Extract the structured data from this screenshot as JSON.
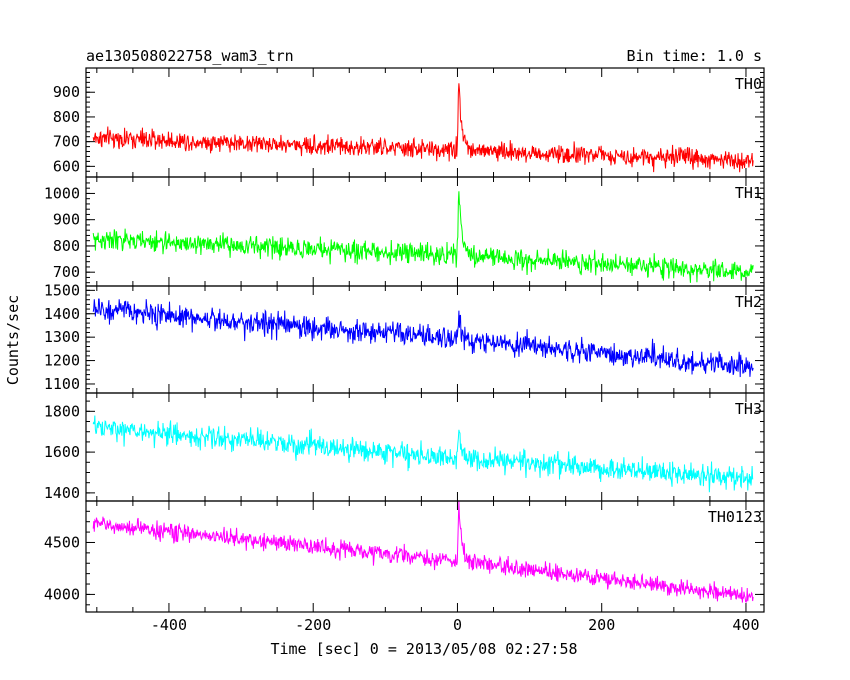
{
  "chart_data": {
    "type": "line",
    "title": "ae130508022758_wam3_trn",
    "subtitle": "Bin time: 1.0 s",
    "xlabel": "Time [sec] 0 = 2013/05/08 02:27:58",
    "ylabel": "Counts/sec",
    "xlim": [
      -515,
      425
    ],
    "xticks": [
      -400,
      -200,
      0,
      200,
      400
    ],
    "grid": false,
    "panels": [
      {
        "name": "TH0",
        "color": "#ff0000",
        "ylim": [
          565,
          990
        ],
        "yticks": [
          600,
          700,
          800,
          900
        ],
        "trend": [
          [
            -505,
            715
          ],
          [
            0,
            665
          ],
          [
            410,
            625
          ]
        ],
        "noise": 35,
        "peak": {
          "x": 2,
          "y": 975
        }
      },
      {
        "name": "TH1",
        "color": "#00ff00",
        "ylim": [
          655,
          1055
        ],
        "yticks": [
          700,
          800,
          900,
          1000
        ],
        "trend": [
          [
            -505,
            825
          ],
          [
            0,
            765
          ],
          [
            410,
            700
          ]
        ],
        "noise": 35,
        "peak": {
          "x": 2,
          "y": 1010
        }
      },
      {
        "name": "TH2",
        "color": "#0000ff",
        "ylim": [
          1070,
          1510
        ],
        "yticks": [
          1100,
          1200,
          1300,
          1400,
          1500
        ],
        "trend": [
          [
            -505,
            1420
          ],
          [
            0,
            1290
          ],
          [
            410,
            1170
          ]
        ],
        "noise": 45,
        "peak": {
          "x": 2,
          "y": 1400
        }
      },
      {
        "name": "TH3",
        "color": "#00ffff",
        "ylim": [
          1370,
          1880
        ],
        "yticks": [
          1400,
          1600,
          1800
        ],
        "trend": [
          [
            -505,
            1720
          ],
          [
            0,
            1570
          ],
          [
            410,
            1470
          ]
        ],
        "noise": 50,
        "peak": {
          "x": 2,
          "y": 1690
        }
      },
      {
        "name": "TH0123",
        "color": "#ff00ff",
        "ylim": [
          3850,
          4880
        ],
        "yticks": [
          4000,
          4500
        ],
        "trend": [
          [
            -505,
            4680
          ],
          [
            0,
            4320
          ],
          [
            410,
            3980
          ]
        ],
        "noise": 75,
        "peak": {
          "x": 2,
          "y": 4870
        }
      }
    ]
  }
}
